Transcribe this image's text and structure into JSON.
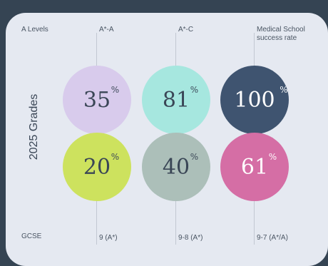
{
  "header": {
    "row_label": "A Levels",
    "columns": [
      "A*-A",
      "A*-C",
      "Medical School success rate"
    ]
  },
  "side_label": "2025 Grades",
  "footer": {
    "row_label": "GCSE",
    "columns": [
      "9 (A*)",
      "9-8 (A*)",
      "9-7 (A*/A)"
    ]
  },
  "a_levels": [
    {
      "value": "35",
      "unit": "%",
      "color": "#d8cbec"
    },
    {
      "value": "81",
      "unit": "%",
      "color": "#a6e7df"
    },
    {
      "value": "100",
      "unit": "%",
      "color": "#3f5470"
    }
  ],
  "gcse": [
    {
      "value": "20",
      "unit": "%",
      "color": "#cde25e"
    },
    {
      "value": "40",
      "unit": "%",
      "color": "#acbfb9"
    },
    {
      "value": "61",
      "unit": "%",
      "color": "#d56ea5"
    }
  ]
}
